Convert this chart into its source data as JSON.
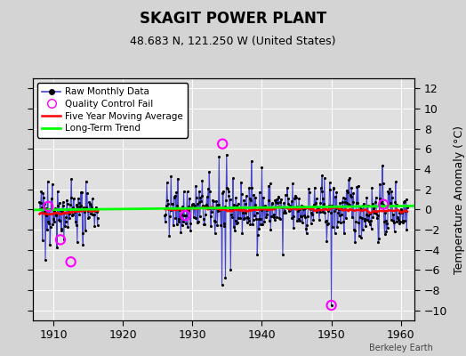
{
  "title": "SKAGIT POWER PLANT",
  "subtitle": "48.683 N, 121.250 W (United States)",
  "ylabel_right": "Temperature Anomaly (°C)",
  "watermark": "Berkeley Earth",
  "xlim": [
    1907,
    1962
  ],
  "ylim": [
    -11,
    13
  ],
  "yticks": [
    -10,
    -8,
    -6,
    -4,
    -2,
    0,
    2,
    4,
    6,
    8,
    10,
    12
  ],
  "xticks": [
    1910,
    1920,
    1930,
    1940,
    1950,
    1960
  ],
  "bg_color": "#d4d4d4",
  "plot_bg_color": "#e0e0e0",
  "grid_color": "white",
  "raw_line_color": "#4444cc",
  "raw_dot_color": "black",
  "ma_color": "red",
  "trend_color": "lime",
  "qc_color": "magenta",
  "seed": 42,
  "start_year": 1908,
  "end_year": 1960,
  "gap_start": 1916.5,
  "gap_end": 1926.0,
  "qc_fail_times": [
    1909.25,
    1911.0,
    1912.5,
    1929.0,
    1934.33,
    1950.0,
    1957.5
  ],
  "qc_fail_values": [
    0.3,
    -3.0,
    -5.2,
    -0.6,
    6.5,
    -9.5,
    0.5
  ]
}
